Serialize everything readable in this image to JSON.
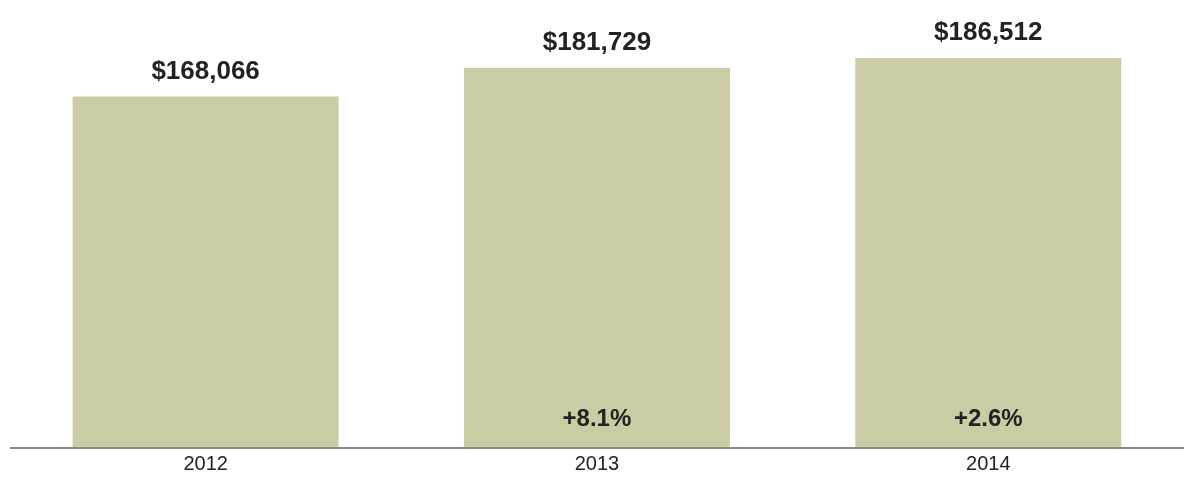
{
  "chart_data": {
    "type": "bar",
    "categories": [
      "2012",
      "2013",
      "2014"
    ],
    "values": [
      168066,
      181729,
      186512
    ],
    "color": "#cbcca5",
    "value_labels": [
      "$168,066",
      "$181,729",
      "$186,512"
    ],
    "annotations": [
      "+8.1%",
      "+2.6%"
    ]
  }
}
